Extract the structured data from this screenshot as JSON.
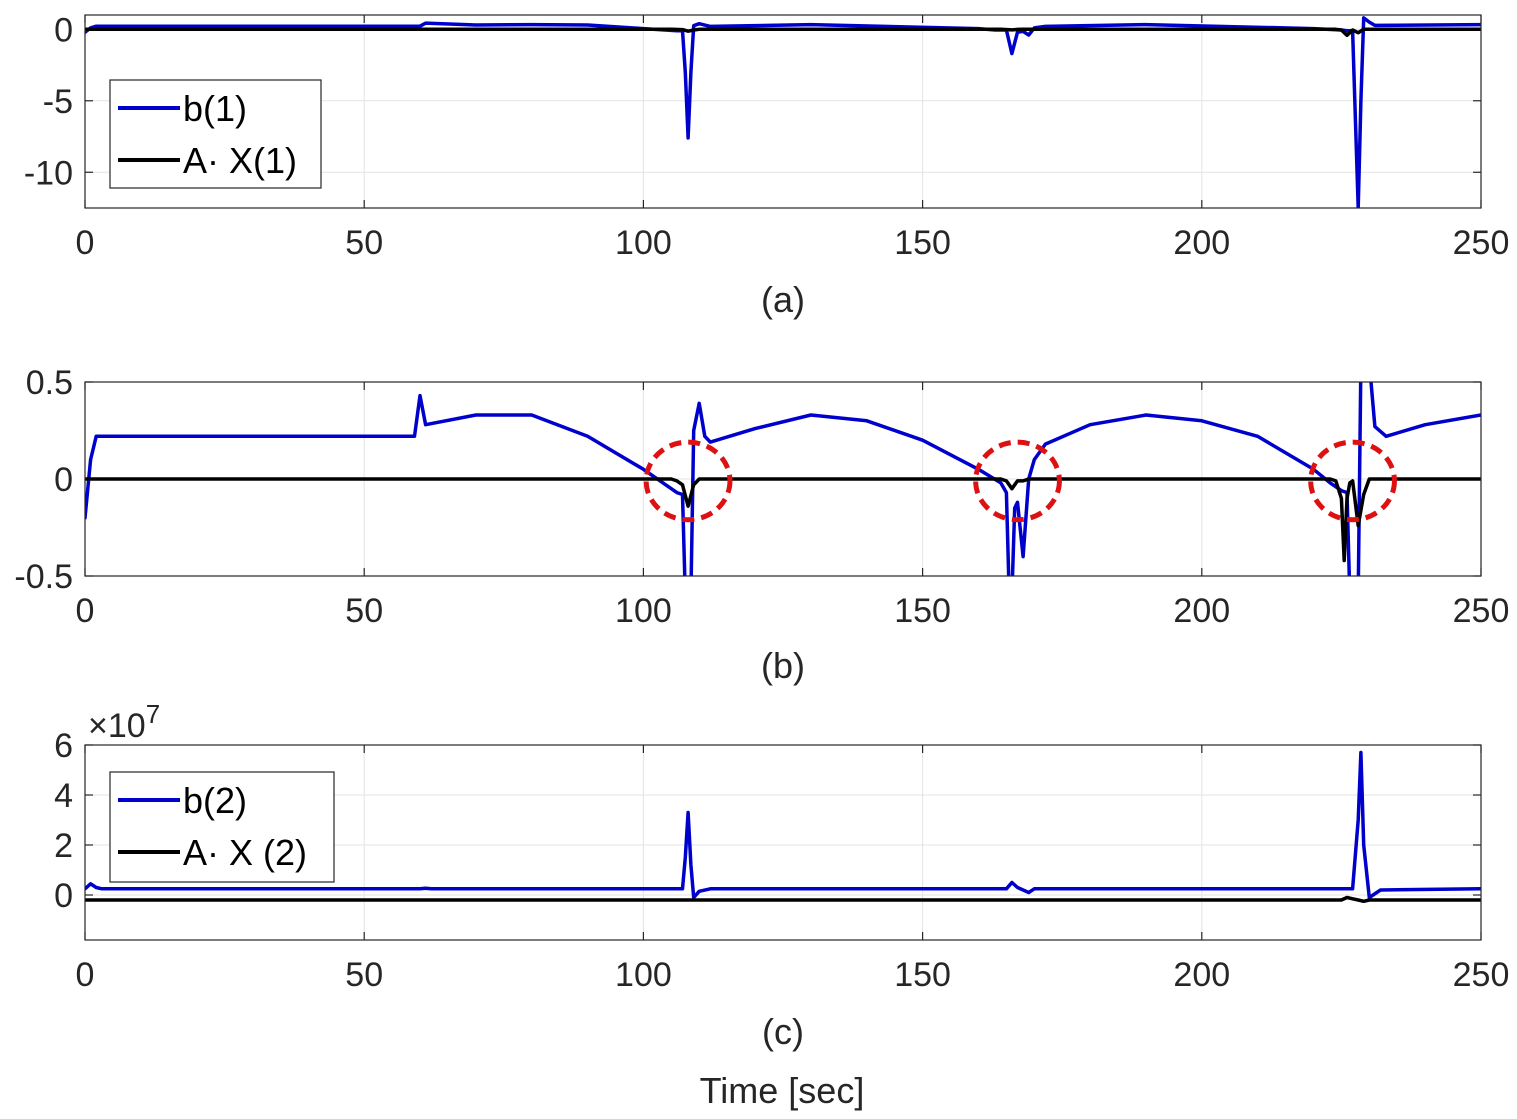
{
  "figure": {
    "xlabel": "Time [sec]"
  },
  "colors": {
    "b": "#0000cc",
    "ax": "#000000",
    "circle": "#dd1111"
  },
  "chart_data": [
    {
      "type": "line",
      "caption": "(a)",
      "title": "",
      "xlabel": "",
      "ylabel": "",
      "xlim": [
        0,
        250
      ],
      "ylim": [
        -12.5,
        1
      ],
      "xticks": [
        0,
        50,
        100,
        150,
        200,
        250
      ],
      "yticks": [
        0,
        -5,
        -10
      ],
      "xtick_labels": [
        "0",
        "50",
        "100",
        "150",
        "200",
        "250"
      ],
      "ytick_labels": [
        "0",
        "-5",
        "-10"
      ],
      "exponent_label": "",
      "grid": true,
      "legend_position": "left",
      "series": [
        {
          "name": "b(1)",
          "color": "#0000cc",
          "x": [
            0,
            1,
            2,
            3,
            5,
            60,
            61,
            70,
            80,
            90,
            100,
            106,
            107,
            107.5,
            108,
            108.5,
            109,
            110,
            112,
            130,
            160,
            163,
            165,
            166,
            167,
            168,
            169,
            170,
            172,
            190,
            220,
            225,
            226,
            227,
            228,
            228.5,
            229,
            230,
            231,
            250
          ],
          "y": [
            -0.2,
            0.1,
            0.22,
            0.22,
            0.22,
            0.22,
            0.43,
            0.3,
            0.33,
            0.3,
            0.05,
            -0.1,
            -0.1,
            -3,
            -7.6,
            -3,
            0.25,
            0.39,
            0.2,
            0.33,
            0.05,
            -0.05,
            -0.05,
            -1.7,
            -0.2,
            -0.15,
            -0.4,
            0.1,
            0.2,
            0.33,
            0.05,
            -0.05,
            -0.1,
            -0.1,
            -12.5,
            -5,
            0.8,
            0.5,
            0.27,
            0.33
          ]
        },
        {
          "name": "A· X(1)",
          "color": "#000000",
          "x": [
            0,
            105,
            107,
            108,
            109,
            110,
            164,
            166,
            167,
            168,
            224,
            225,
            226,
            227,
            228,
            229,
            250
          ],
          "y": [
            0,
            0,
            -0.02,
            -0.13,
            -0.05,
            0,
            0,
            -0.04,
            -0.01,
            0,
            0,
            -0.05,
            -0.42,
            -0.05,
            -0.24,
            0,
            0
          ]
        }
      ],
      "annotations": []
    },
    {
      "type": "line",
      "caption": "(b)",
      "title": "",
      "xlabel": "",
      "ylabel": "",
      "xlim": [
        0,
        250
      ],
      "ylim": [
        -0.5,
        0.5
      ],
      "xticks": [
        0,
        50,
        100,
        150,
        200,
        250
      ],
      "yticks": [
        0.5,
        0,
        -0.5
      ],
      "xtick_labels": [
        "0",
        "50",
        "100",
        "150",
        "200",
        "250"
      ],
      "ytick_labels": [
        "0.5",
        "0",
        "-0.5"
      ],
      "exponent_label": "",
      "grid": true,
      "legend_position": "",
      "series": [
        {
          "name": "b(1)",
          "color": "#0000cc",
          "x": [
            0,
            1,
            2,
            3,
            5,
            59,
            60,
            61,
            70,
            80,
            90,
            100,
            104,
            106,
            107,
            107.5,
            108,
            108.5,
            109,
            110,
            111,
            112,
            120,
            130,
            140,
            150,
            160,
            164,
            165,
            165.5,
            166,
            166.5,
            167,
            168,
            169,
            170,
            172,
            180,
            190,
            200,
            210,
            220,
            223,
            225,
            226,
            226.5,
            227,
            227.5,
            228,
            228.5,
            229,
            230,
            231,
            233,
            240,
            250
          ],
          "y": [
            -0.2,
            0.1,
            0.22,
            0.22,
            0.22,
            0.22,
            0.43,
            0.28,
            0.33,
            0.33,
            0.22,
            0.05,
            -0.03,
            -0.07,
            -0.08,
            -0.6,
            -0.6,
            -0.6,
            0.25,
            0.39,
            0.22,
            0.19,
            0.26,
            0.33,
            0.3,
            0.2,
            0.05,
            -0.02,
            -0.07,
            -0.6,
            -0.6,
            -0.15,
            -0.12,
            -0.4,
            0.0,
            0.1,
            0.18,
            0.28,
            0.33,
            0.3,
            0.22,
            0.05,
            -0.02,
            -0.06,
            -0.07,
            -0.6,
            -0.6,
            -0.6,
            -0.6,
            0.6,
            0.6,
            0.6,
            0.27,
            0.22,
            0.28,
            0.33
          ]
        },
        {
          "name": "A· X(1)",
          "color": "#000000",
          "x": [
            0,
            105,
            106,
            107,
            108,
            109,
            110,
            164,
            165,
            166,
            167,
            168,
            169,
            223,
            224,
            225,
            225.5,
            226,
            226.5,
            227,
            228,
            229,
            230,
            250
          ],
          "y": [
            0,
            0,
            -0.01,
            -0.03,
            -0.14,
            -0.03,
            0,
            0,
            -0.01,
            -0.05,
            -0.01,
            -0.01,
            0,
            0,
            -0.01,
            -0.1,
            -0.42,
            -0.1,
            -0.02,
            -0.01,
            -0.24,
            -0.08,
            0,
            0
          ]
        }
      ],
      "annotations": [
        {
          "shape": "dashed-circle",
          "cx": 108,
          "cy": -0.01,
          "rx": 7.5,
          "ry": 0.2
        },
        {
          "shape": "dashed-circle",
          "cx": 167,
          "cy": -0.01,
          "rx": 7.5,
          "ry": 0.2
        },
        {
          "shape": "dashed-circle",
          "cx": 227,
          "cy": -0.01,
          "rx": 7.5,
          "ry": 0.2
        }
      ]
    },
    {
      "type": "line",
      "caption": "(c)",
      "title": "",
      "xlabel": "",
      "ylabel": "",
      "xlim": [
        0,
        250
      ],
      "ylim": [
        -1.8,
        6
      ],
      "xticks": [
        0,
        50,
        100,
        150,
        200,
        250
      ],
      "yticks": [
        6,
        4,
        2,
        0
      ],
      "xtick_labels": [
        "0",
        "50",
        "100",
        "150",
        "200",
        "250"
      ],
      "ytick_labels": [
        "6",
        "4",
        "2",
        "0"
      ],
      "exponent_label": "×10",
      "exponent_power": "7",
      "grid": true,
      "legend_position": "left",
      "series": [
        {
          "name": "b(2)",
          "color": "#0000cc",
          "x": [
            0,
            1,
            2,
            3,
            60,
            61,
            62,
            100,
            107,
            107.5,
            108,
            108.5,
            109,
            110,
            112,
            165,
            166,
            167,
            168,
            169,
            170,
            225,
            227,
            228,
            228.5,
            229,
            230,
            232,
            250
          ],
          "y": [
            0.25,
            0.45,
            0.3,
            0.25,
            0.25,
            0.27,
            0.25,
            0.25,
            0.25,
            1.5,
            3.3,
            1.2,
            -0.1,
            0.15,
            0.25,
            0.25,
            0.5,
            0.3,
            0.2,
            0.1,
            0.25,
            0.25,
            0.25,
            3.0,
            5.7,
            2.0,
            -0.1,
            0.2,
            0.25
          ]
        },
        {
          "name": "A· X (2)",
          "color": "#000000",
          "x": [
            0,
            225,
            226,
            227,
            228,
            229,
            230,
            250
          ],
          "y": [
            -0.2,
            -0.2,
            -0.1,
            -0.15,
            -0.2,
            -0.25,
            -0.2,
            -0.2
          ]
        }
      ],
      "annotations": []
    }
  ]
}
